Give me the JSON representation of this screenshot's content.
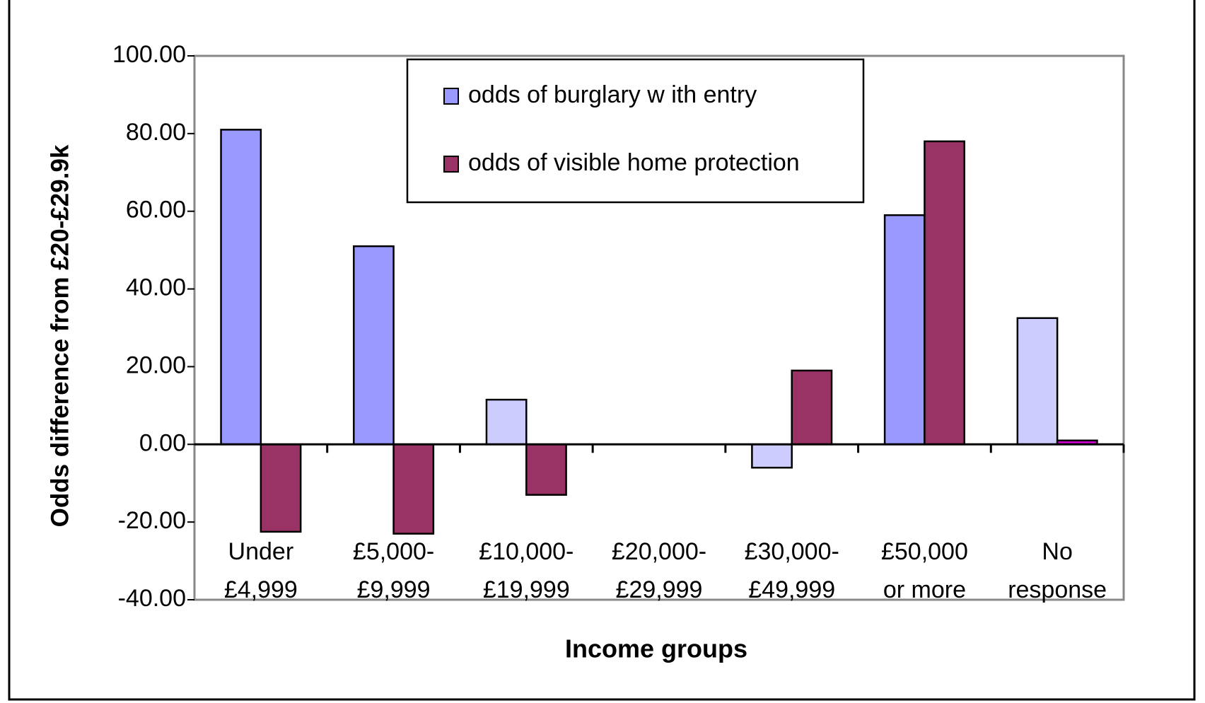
{
  "chart_data": {
    "type": "bar",
    "x_label": "Income groups",
    "y_label": "Odds difference from £20-£29.9k",
    "categories": [
      "Under\n£4,999",
      "£5,000-\n£9,999",
      "£10,000-\n£19,999",
      "£20,000-\n£29,999",
      "£30,000-\n£49,999",
      "£50,000\nor more",
      "No\nresponse"
    ],
    "series": [
      {
        "name": "odds of burglary w ith entry",
        "color": "#9999ff",
        "colors": [
          "#9999ff",
          "#9999ff",
          "#ccccff",
          "#9999ff",
          "#ccccff",
          "#9999ff",
          "#ccccff"
        ],
        "values": [
          81,
          51,
          11.5,
          0,
          -6,
          59,
          32.5
        ]
      },
      {
        "name": "odds of visible home protection",
        "color": "#993366",
        "colors": [
          "#993366",
          "#993366",
          "#993366",
          "#993366",
          "#993366",
          "#993366",
          "#cc00cc"
        ],
        "values": [
          -22.5,
          -23,
          -13,
          0,
          19,
          78,
          1
        ]
      }
    ],
    "ylim": [
      -40,
      100
    ],
    "yticks": [
      {
        "value": -40,
        "label": "-40.00"
      },
      {
        "value": -20,
        "label": "-20.00"
      },
      {
        "value": 0,
        "label": "0.00"
      },
      {
        "value": 20,
        "label": "20.00"
      },
      {
        "value": 40,
        "label": "40.00"
      },
      {
        "value": 60,
        "label": "60.00"
      },
      {
        "value": 80,
        "label": "80.00"
      },
      {
        "value": 100,
        "label": "100.00"
      }
    ],
    "grid": false,
    "legend": "top"
  }
}
